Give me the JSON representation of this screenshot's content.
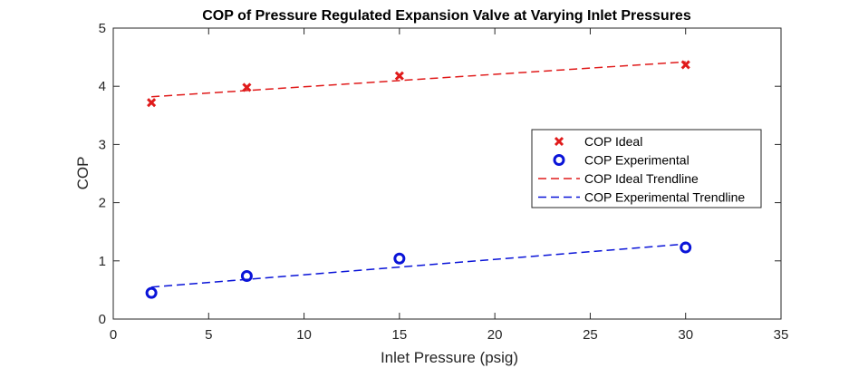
{
  "chart_data": {
    "type": "scatter",
    "title": "COP of Pressure Regulated Expansion Valve at Varying Inlet Pressures",
    "xlabel": "Inlet Pressure (psig)",
    "ylabel": "COP",
    "xlim": [
      0,
      35
    ],
    "ylim": [
      0,
      5
    ],
    "xticks": [
      0,
      5,
      10,
      15,
      20,
      25,
      30,
      35
    ],
    "yticks": [
      0,
      1,
      2,
      3,
      4,
      5
    ],
    "grid": false,
    "legend_position": "right",
    "series": [
      {
        "name": "COP Ideal",
        "kind": "markers",
        "marker": "x",
        "color": "#e01b1b",
        "x": [
          2,
          7,
          15,
          30
        ],
        "y": [
          3.72,
          3.98,
          4.18,
          4.37
        ]
      },
      {
        "name": "COP Experimental",
        "kind": "markers",
        "marker": "o",
        "color": "#0a14d8",
        "x": [
          2,
          7,
          15,
          30
        ],
        "y": [
          0.45,
          0.74,
          1.04,
          1.23
        ]
      },
      {
        "name": "COP Ideal Trendline",
        "kind": "dashed-line",
        "color": "#e01b1b",
        "x": [
          2,
          30
        ],
        "y": [
          3.82,
          4.42
        ]
      },
      {
        "name": "COP Experimental Trendline",
        "kind": "dashed-line",
        "color": "#0a14d8",
        "x": [
          2,
          30
        ],
        "y": [
          0.55,
          1.29
        ]
      }
    ]
  }
}
